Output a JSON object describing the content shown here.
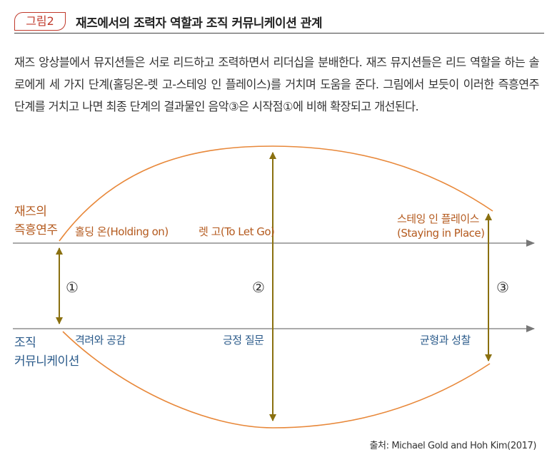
{
  "figure": {
    "tag": "그림2",
    "title": "재즈에서의 조력자 역할과 조직 커뮤니케이션 관계"
  },
  "description": "재즈 앙상블에서 뮤지션들은 서로 리드하고 조력하면서 리더십을 분배한다. 재즈 뮤지션들은 리드 역할을 하는 솔로에게 세 가지 단계(홀딩온-렛 고-스테잉 인 플레이스)를 거치며 도움을 준다. 그림에서 보듯이 이러한 즉흥연주 단계를 거치고 나면 최종 단계의 결과물인 음악③은 시작점①에 비해 확장되고 개선된다.",
  "diagram": {
    "top_axis": {
      "label_line1": "재즈의",
      "label_line2": "즉흥연주",
      "stages": [
        "홀딩 온(Holding on)",
        "렛 고(To Let Go)",
        "스테잉 인 플레이스",
        "(Staying in Place)"
      ]
    },
    "bottom_axis": {
      "label_line1": "조직",
      "label_line2": "커뮤니케이션",
      "stages": [
        "격려와 공감",
        "긍정 질문",
        "균형과 성찰"
      ]
    },
    "markers": [
      "①",
      "②",
      "③"
    ],
    "colors": {
      "jazz": "#b45a1e",
      "org": "#2a5a8a",
      "curve": "#e8883a",
      "arrow": "#8a7010",
      "axis": "#777777"
    }
  },
  "source": "출처: Michael Gold and Hoh Kim(2017)"
}
